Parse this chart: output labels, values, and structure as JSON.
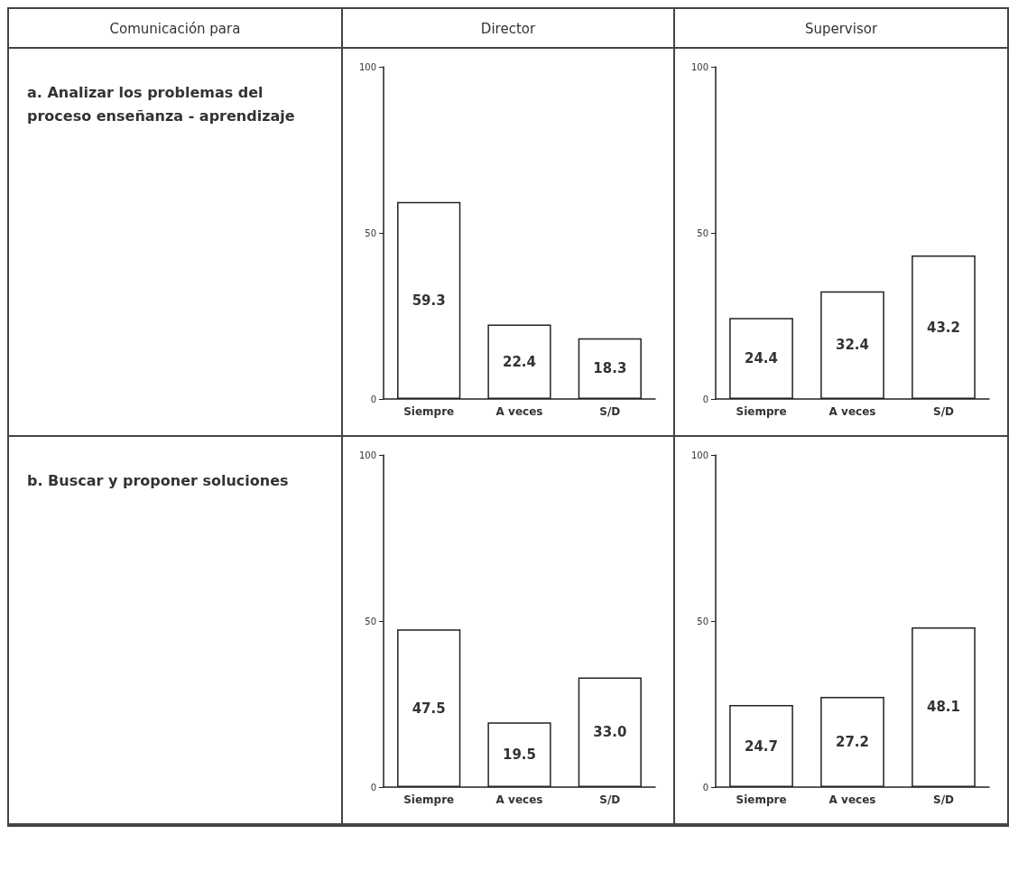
{
  "chart_data": [
    {
      "type": "other",
      "title": "Comunicación para"
    },
    {
      "type": "other",
      "title": "Director"
    },
    {
      "type": "other",
      "title": "Supervisor"
    },
    {
      "type": "other",
      "title": "a. Analizar los problemas del proceso enseñanza - aprendizaje"
    },
    {
      "type": "bar",
      "categories": [
        "Siempre",
        "A veces",
        "S/D"
      ],
      "values": [
        59.3,
        22.4,
        18.3
      ],
      "value_labels": [
        "59.3",
        "22.4",
        "18.3"
      ],
      "color": "#ffffff",
      "ylim": [
        0,
        100
      ],
      "yticks": [
        0,
        50,
        100
      ]
    },
    {
      "type": "bar",
      "categories": [
        "Siempre",
        "A veces",
        "S/D"
      ],
      "values": [
        24.4,
        32.4,
        43.2
      ],
      "value_labels": [
        "24.4",
        "32.4",
        "43.2"
      ],
      "color": "#ffffff",
      "ylim": [
        0,
        100
      ],
      "yticks": [
        0,
        50,
        100
      ]
    },
    {
      "type": "other",
      "title": "b. Buscar y proponer soluciones"
    },
    {
      "type": "bar",
      "categories": [
        "Siempre",
        "A veces",
        "S/D"
      ],
      "values": [
        47.5,
        19.5,
        33.0
      ],
      "value_labels": [
        "47.5",
        "19.5",
        "33.0"
      ],
      "color": "#ffffff",
      "ylim": [
        0,
        100
      ],
      "yticks": [
        0,
        50,
        100
      ]
    },
    {
      "type": "bar",
      "categories": [
        "Siempre",
        "A veces",
        "S/D"
      ],
      "values": [
        24.7,
        27.2,
        48.1
      ],
      "value_labels": [
        "24.7",
        "27.2",
        "48.1"
      ],
      "color": "#ffffff",
      "ylim": [
        0,
        100
      ],
      "yticks": [
        0,
        50,
        100
      ]
    }
  ]
}
